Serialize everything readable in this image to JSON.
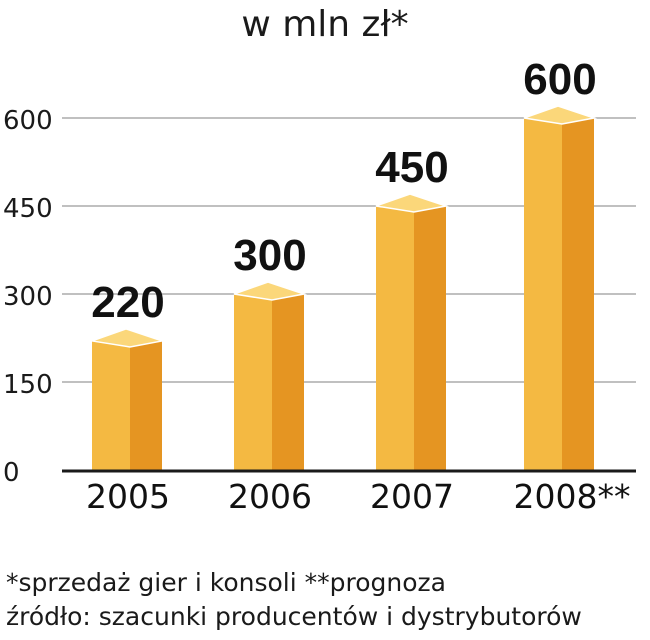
{
  "chart_data": {
    "type": "bar",
    "title": "w mln zł*",
    "categories": [
      "2005",
      "2006",
      "2007",
      "2008**"
    ],
    "values": [
      220,
      300,
      450,
      600
    ],
    "value_labels": [
      "220",
      "300",
      "450",
      "600"
    ],
    "y_ticks": [
      0,
      150,
      300,
      450,
      600
    ],
    "ylim": [
      0,
      600
    ],
    "grid": true,
    "bar_style": "3d-column",
    "colors": {
      "bar_front": "#f4b942",
      "bar_side": "#e59522",
      "bar_top": "#fbd77a",
      "grid": "#9a9a9a",
      "axis": "#1a1a1a"
    }
  },
  "footnotes": {
    "note_1": "*sprzedaż gier i konsoli   **prognoza",
    "note_2": "źródło: szacunki producentów i dystrybutorów"
  }
}
